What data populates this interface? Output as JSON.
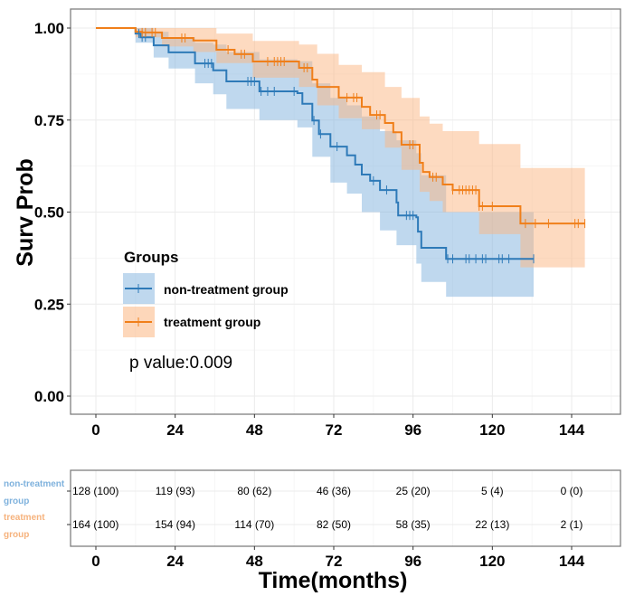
{
  "chart_data": {
    "type": "line",
    "subtype": "kaplan-meier",
    "title": "",
    "xlabel": "Time(months)",
    "ylabel": "Surv Prob",
    "xlim": [
      0,
      144
    ],
    "ylim": [
      0,
      1
    ],
    "x_ticks": [
      "0",
      "24",
      "48",
      "72",
      "96",
      "120",
      "144"
    ],
    "y_ticks": [
      "0.00",
      "0.25",
      "0.50",
      "0.75",
      "1.00"
    ],
    "grid": true,
    "legend": {
      "title": "Groups",
      "placement": "bottom-left",
      "entries": [
        "non-treatment group",
        "treatment group"
      ]
    },
    "annotation": "p value:0.009",
    "series": [
      {
        "name": "non-treatment group",
        "color": "#2e7ab8",
        "band_color": "#7fb2dd",
        "end_time": 132.5,
        "steps": [
          [
            0,
            1.0
          ],
          [
            12,
            0.985
          ],
          [
            13.5,
            0.975
          ],
          [
            17.5,
            0.953
          ],
          [
            22,
            0.934
          ],
          [
            30,
            0.904
          ],
          [
            35.5,
            0.885
          ],
          [
            39.5,
            0.855
          ],
          [
            49.5,
            0.828
          ],
          [
            61,
            0.823
          ],
          [
            62.5,
            0.794
          ],
          [
            65.5,
            0.749
          ],
          [
            67.5,
            0.712
          ],
          [
            71,
            0.678
          ],
          [
            76,
            0.654
          ],
          [
            78.5,
            0.629
          ],
          [
            80.5,
            0.602
          ],
          [
            83,
            0.585
          ],
          [
            86,
            0.56
          ],
          [
            91,
            0.526
          ],
          [
            91.5,
            0.491
          ],
          [
            97,
            0.486
          ],
          [
            97.5,
            0.447
          ],
          [
            98.5,
            0.403
          ],
          [
            106,
            0.373
          ]
        ],
        "ci_upper": [
          [
            0,
            1.0
          ],
          [
            12,
            1.0
          ],
          [
            17.5,
            0.99
          ],
          [
            22,
            0.975
          ],
          [
            30,
            0.96
          ],
          [
            35.5,
            0.955
          ],
          [
            39.5,
            0.935
          ],
          [
            49.5,
            0.915
          ],
          [
            61,
            0.91
          ],
          [
            65.5,
            0.85
          ],
          [
            71,
            0.81
          ],
          [
            76,
            0.79
          ],
          [
            80.5,
            0.76
          ],
          [
            86,
            0.72
          ],
          [
            91,
            0.695
          ],
          [
            97,
            0.66
          ],
          [
            98.5,
            0.6
          ],
          [
            106,
            0.5
          ],
          [
            132.5,
            0.5
          ]
        ],
        "ci_lower": [
          [
            0,
            1.0
          ],
          [
            12,
            0.96
          ],
          [
            17.5,
            0.92
          ],
          [
            22,
            0.89
          ],
          [
            30,
            0.85
          ],
          [
            35.5,
            0.82
          ],
          [
            39.5,
            0.78
          ],
          [
            49.5,
            0.75
          ],
          [
            61,
            0.73
          ],
          [
            65.5,
            0.65
          ],
          [
            71,
            0.58
          ],
          [
            76,
            0.55
          ],
          [
            80.5,
            0.5
          ],
          [
            86,
            0.45
          ],
          [
            91,
            0.41
          ],
          [
            97,
            0.36
          ],
          [
            98.5,
            0.31
          ],
          [
            106,
            0.27
          ],
          [
            132.5,
            0.27
          ]
        ],
        "censor_times": [
          13,
          14,
          15,
          33,
          34,
          35,
          46,
          47,
          48,
          50,
          52,
          54,
          60,
          66,
          68,
          73,
          84,
          88,
          94,
          95,
          96,
          106.5,
          108,
          112,
          113,
          115,
          117,
          118,
          122,
          123,
          125,
          132.5
        ]
      },
      {
        "name": "treatment group",
        "color": "#f07f1a",
        "band_color": "#fbb682",
        "end_time": 148,
        "steps": [
          [
            0,
            1.0
          ],
          [
            12,
            0.99
          ],
          [
            14,
            0.988
          ],
          [
            20,
            0.973
          ],
          [
            29.5,
            0.966
          ],
          [
            36.5,
            0.941
          ],
          [
            42,
            0.929
          ],
          [
            47.5,
            0.909
          ],
          [
            61.5,
            0.892
          ],
          [
            65.5,
            0.86
          ],
          [
            67,
            0.84
          ],
          [
            73.5,
            0.811
          ],
          [
            80.5,
            0.786
          ],
          [
            83,
            0.764
          ],
          [
            87.5,
            0.742
          ],
          [
            90,
            0.717
          ],
          [
            92.5,
            0.683
          ],
          [
            98,
            0.634
          ],
          [
            99,
            0.609
          ],
          [
            101,
            0.595
          ],
          [
            105,
            0.575
          ],
          [
            108,
            0.56
          ],
          [
            116,
            0.516
          ],
          [
            128.5,
            0.469
          ]
        ],
        "ci_upper": [
          [
            0,
            1.0
          ],
          [
            12,
            1.0
          ],
          [
            29.5,
            1.0
          ],
          [
            36.5,
            0.985
          ],
          [
            47.5,
            0.965
          ],
          [
            61.5,
            0.955
          ],
          [
            67,
            0.93
          ],
          [
            73.5,
            0.9
          ],
          [
            80.5,
            0.88
          ],
          [
            87.5,
            0.84
          ],
          [
            92.5,
            0.81
          ],
          [
            98,
            0.76
          ],
          [
            101,
            0.74
          ],
          [
            105,
            0.72
          ],
          [
            116,
            0.685
          ],
          [
            128.5,
            0.62
          ],
          [
            148,
            0.62
          ]
        ],
        "ci_lower": [
          [
            0,
            1.0
          ],
          [
            12,
            0.975
          ],
          [
            20,
            0.95
          ],
          [
            29.5,
            0.935
          ],
          [
            36.5,
            0.905
          ],
          [
            47.5,
            0.865
          ],
          [
            61.5,
            0.84
          ],
          [
            67,
            0.79
          ],
          [
            73.5,
            0.755
          ],
          [
            80.5,
            0.725
          ],
          [
            87.5,
            0.675
          ],
          [
            92.5,
            0.615
          ],
          [
            98,
            0.555
          ],
          [
            101,
            0.53
          ],
          [
            105,
            0.5
          ],
          [
            116,
            0.44
          ],
          [
            128.5,
            0.35
          ],
          [
            148,
            0.35
          ]
        ],
        "censor_times": [
          14,
          15,
          17,
          18,
          26,
          27,
          40,
          44,
          45,
          52,
          54,
          55,
          56,
          57,
          63,
          64,
          76,
          78,
          79,
          85,
          86,
          95,
          96,
          102,
          103,
          108,
          110,
          111,
          112,
          113,
          114,
          115,
          116,
          117,
          120,
          130,
          133,
          137,
          145,
          146,
          148
        ]
      }
    ],
    "risk_table": {
      "time_points": [
        0,
        24,
        48,
        72,
        96,
        120,
        144
      ],
      "rows": [
        {
          "strata": "non-treatment group",
          "color": "#7fb2dd",
          "cells": [
            "128 (100)",
            "119 (93)",
            "80 (62)",
            "46 (36)",
            "25 (20)",
            "5 (4)",
            "0 (0)"
          ]
        },
        {
          "strata": "treatment group",
          "color": "#f6b27c",
          "cells": [
            "164 (100)",
            "154 (94)",
            "114 (70)",
            "82 (50)",
            "58 (35)",
            "22 (13)",
            "2 (1)"
          ]
        }
      ]
    }
  }
}
